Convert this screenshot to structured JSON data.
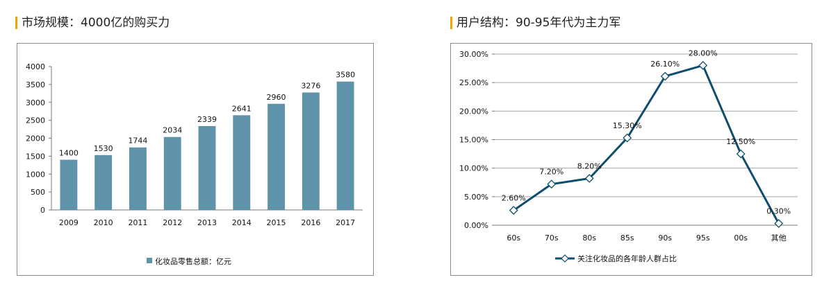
{
  "left_panel": {
    "title": "市场规模：4000亿的购买力"
  },
  "right_panel": {
    "title": "用户结构：90-95年代为主力军"
  },
  "colors": {
    "bar": "#5e93aa",
    "line": "#0d4e6e",
    "accent": "#f0a500"
  },
  "chart_data": [
    {
      "type": "bar",
      "title": "",
      "xlabel": "",
      "ylabel": "",
      "categories": [
        "2009",
        "2010",
        "2011",
        "2012",
        "2013",
        "2014",
        "2015",
        "2016",
        "2017"
      ],
      "series": [
        {
          "name": "化妆品零售总额：亿元",
          "values": [
            1400,
            1530,
            1744,
            2034,
            2339,
            2641,
            2960,
            3276,
            3580
          ]
        }
      ],
      "ylim": [
        0,
        4000
      ],
      "yticks": [
        0,
        500,
        1000,
        1500,
        2000,
        2500,
        3000,
        3500,
        4000
      ],
      "ytick_labels": [
        "0",
        "500",
        "1000",
        "1500",
        "2000",
        "2500",
        "3000",
        "3500",
        "4000"
      ],
      "data_labels": [
        "1400",
        "1530",
        "1744",
        "2034",
        "2339",
        "2641",
        "2960",
        "3276",
        "3580"
      ],
      "grid": false,
      "legend": "bottom"
    },
    {
      "type": "line",
      "title": "",
      "xlabel": "",
      "ylabel": "",
      "categories": [
        "60s",
        "70s",
        "80s",
        "85s",
        "90s",
        "95s",
        "00s",
        "其他"
      ],
      "series": [
        {
          "name": "关注化妆品的各年龄人群占比",
          "values": [
            2.6,
            7.2,
            8.2,
            15.3,
            26.1,
            28.0,
            12.5,
            0.3
          ]
        }
      ],
      "ylim": [
        0,
        30
      ],
      "yticks": [
        0,
        5,
        10,
        15,
        20,
        25,
        30
      ],
      "ytick_labels": [
        "0.00%",
        "5.00%",
        "10.00%",
        "15.00%",
        "20.00%",
        "25.00%",
        "30.00%"
      ],
      "data_labels": [
        "2.60%",
        "7.20%",
        "8.20%",
        "15.30%",
        "26.10%",
        "28.00%",
        "12.50%",
        "0.30%"
      ],
      "grid": true,
      "legend": "bottom"
    }
  ]
}
